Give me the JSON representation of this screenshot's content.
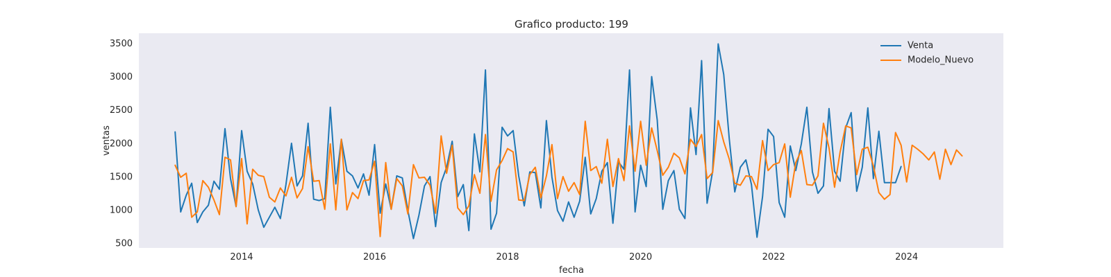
{
  "chart_data": {
    "type": "line",
    "title": "Grafico producto: 199",
    "xlabel": "fecha",
    "ylabel": "ventas",
    "xlim": [
      "2012-06-15",
      "2025-06-15"
    ],
    "ylim": [
      440,
      3660
    ],
    "xticks": [
      "2014",
      "2016",
      "2018",
      "2020",
      "2022",
      "2024"
    ],
    "yticks": [
      500,
      1000,
      1500,
      2000,
      2500,
      3000,
      3500
    ],
    "grid": false,
    "legend_position": "top-right",
    "series": [
      {
        "name": "Venta",
        "color": "#1f77b4",
        "start": "2013-01",
        "values": [
          2180,
          980,
          1230,
          1410,
          820,
          980,
          1080,
          1440,
          1320,
          2230,
          1480,
          1060,
          2200,
          1590,
          1400,
          1010,
          750,
          900,
          1050,
          880,
          1390,
          2010,
          1370,
          1520,
          2310,
          1170,
          1150,
          1180,
          2550,
          1400,
          2070,
          1590,
          1520,
          1340,
          1550,
          1230,
          1990,
          960,
          1400,
          1020,
          1520,
          1490,
          1000,
          580,
          930,
          1370,
          1510,
          760,
          1420,
          1650,
          2040,
          1210,
          1390,
          700,
          2150,
          1580,
          3110,
          720,
          960,
          2250,
          2120,
          2200,
          1520,
          1070,
          1580,
          1570,
          1040,
          2350,
          1500,
          1000,
          840,
          1130,
          900,
          1140,
          1800,
          950,
          1180,
          1590,
          1720,
          810,
          1730,
          1620,
          3110,
          980,
          1680,
          1360,
          3010,
          2360,
          1020,
          1450,
          1600,
          1020,
          880,
          2540,
          1840,
          3250,
          1110,
          1590,
          3500,
          3040,
          2070,
          1280,
          1650,
          1760,
          1390,
          600,
          1210,
          2220,
          2110,
          1120,
          900,
          1970,
          1600,
          2000,
          2550,
          1580,
          1260,
          1370,
          2530,
          1590,
          1440,
          2240,
          2470,
          1290,
          1650,
          2540,
          1480,
          2190,
          1420,
          1420,
          1420,
          1660
        ]
      },
      {
        "name": "Modelo_Nuevo",
        "color": "#ff7f0e",
        "start": "2013-01",
        "values": [
          1680,
          1500,
          1560,
          900,
          980,
          1450,
          1350,
          1160,
          940,
          1800,
          1760,
          1060,
          1780,
          800,
          1620,
          1530,
          1510,
          1200,
          1130,
          1340,
          1220,
          1500,
          1190,
          1330,
          1960,
          1440,
          1450,
          1020,
          2000,
          1010,
          2070,
          1010,
          1270,
          1180,
          1450,
          1460,
          1740,
          610,
          1720,
          1020,
          1480,
          1370,
          950,
          1690,
          1490,
          1500,
          1380,
          960,
          2120,
          1560,
          1980,
          1040,
          940,
          1070,
          1540,
          1260,
          2140,
          1140,
          1610,
          1750,
          1930,
          1880,
          1160,
          1150,
          1540,
          1650,
          1190,
          1520,
          1990,
          1180,
          1510,
          1290,
          1420,
          1240,
          2340,
          1600,
          1660,
          1410,
          2070,
          1360,
          1780,
          1450,
          2270,
          1590,
          2340,
          1680,
          2240,
          1900,
          1530,
          1650,
          1860,
          1790,
          1550,
          2070,
          1960,
          2140,
          1480,
          1570,
          2350,
          2030,
          1770,
          1410,
          1380,
          1520,
          1510,
          1320,
          2050,
          1600,
          1690,
          1720,
          2000,
          1200,
          1720,
          1900,
          1390,
          1380,
          1520,
          2310,
          1940,
          1350,
          1880,
          2270,
          2240,
          1540,
          1920,
          1950,
          1670,
          1270,
          1170,
          1240,
          2170,
          1980,
          1430,
          1980,
          1920,
          1850,
          1760,
          1880,
          1470,
          1920,
          1690,
          1910,
          1820
        ]
      }
    ]
  }
}
